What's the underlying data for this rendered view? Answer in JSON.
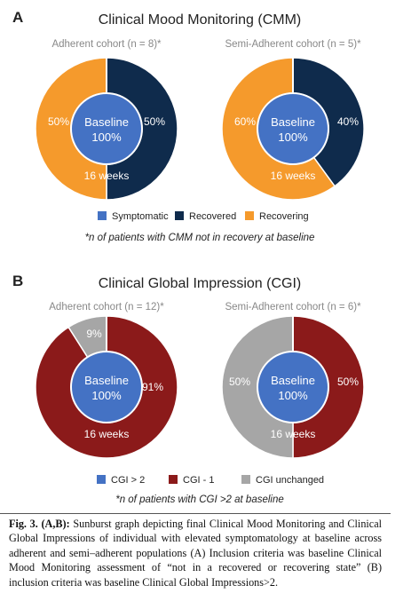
{
  "colors": {
    "symptomatic": "#4472C4",
    "recovered": "#0F2B4C",
    "recovering": "#F59A2C",
    "cgi_gt2": "#4472C4",
    "cgi_minus1": "#8B1A1A",
    "cgi_unchanged": "#A6A6A6"
  },
  "chart_data": [
    {
      "type": "pie",
      "panel_label": "A",
      "title": "Clinical Mood Monitoring (CMM)",
      "center_label": "Baseline",
      "center_value": "100%",
      "outer_ring_label": "16 weeks",
      "legend": [
        "Symptomatic",
        "Recovered",
        "Recovering"
      ],
      "footnote": "*n of patients with CMM not in recovery at baseline",
      "pies": [
        {
          "subtitle": "Adherent cohort (n = 8)*",
          "inner": {
            "category": "Symptomatic",
            "value": 100,
            "label": "Baseline 100%"
          },
          "outer": [
            {
              "category": "Recovered",
              "value": 50,
              "label": "50%"
            },
            {
              "category": "Recovering",
              "value": 50,
              "label": "50%"
            }
          ]
        },
        {
          "subtitle": "Semi-Adherent cohort (n = 5)*",
          "inner": {
            "category": "Symptomatic",
            "value": 100,
            "label": "Baseline 100%"
          },
          "outer": [
            {
              "category": "Recovered",
              "value": 40,
              "label": "40%"
            },
            {
              "category": "Recovering",
              "value": 60,
              "label": "60%"
            }
          ]
        }
      ]
    },
    {
      "type": "pie",
      "panel_label": "B",
      "title": "Clinical Global Impression (CGI)",
      "center_label": "Baseline",
      "center_value": "100%",
      "outer_ring_label": "16 weeks",
      "legend": [
        "CGI > 2",
        "CGI - 1",
        "CGI unchanged"
      ],
      "footnote": "*n of patients with CGI >2 at baseline",
      "pies": [
        {
          "subtitle": "Adherent cohort (n = 12)*",
          "inner": {
            "category": "CGI > 2",
            "value": 100,
            "label": "Baseline 100%"
          },
          "outer": [
            {
              "category": "CGI - 1",
              "value": 91,
              "label": "91%"
            },
            {
              "category": "CGI unchanged",
              "value": 9,
              "label": "9%"
            }
          ]
        },
        {
          "subtitle": "Semi-Adherent cohort (n = 6)*",
          "inner": {
            "category": "CGI > 2",
            "value": 100,
            "label": "Baseline 100%"
          },
          "outer": [
            {
              "category": "CGI - 1",
              "value": 50,
              "label": "50%"
            },
            {
              "category": "CGI unchanged",
              "value": 50,
              "label": "50%"
            }
          ]
        }
      ]
    }
  ],
  "caption": {
    "lead": "Fig. 3. (A,B):",
    "text": " Sunburst graph depicting final Clinical Mood Monitoring and Clinical Global Impressions of individual with elevated symptomatology at baseline across adherent and semi–adherent populations (A) Inclusion criteria was baseline Clinical Mood Monitoring assessment of “not in a recovered or recovering state” (B) inclusion criteria was baseline Clinical Global Impressions>2."
  }
}
